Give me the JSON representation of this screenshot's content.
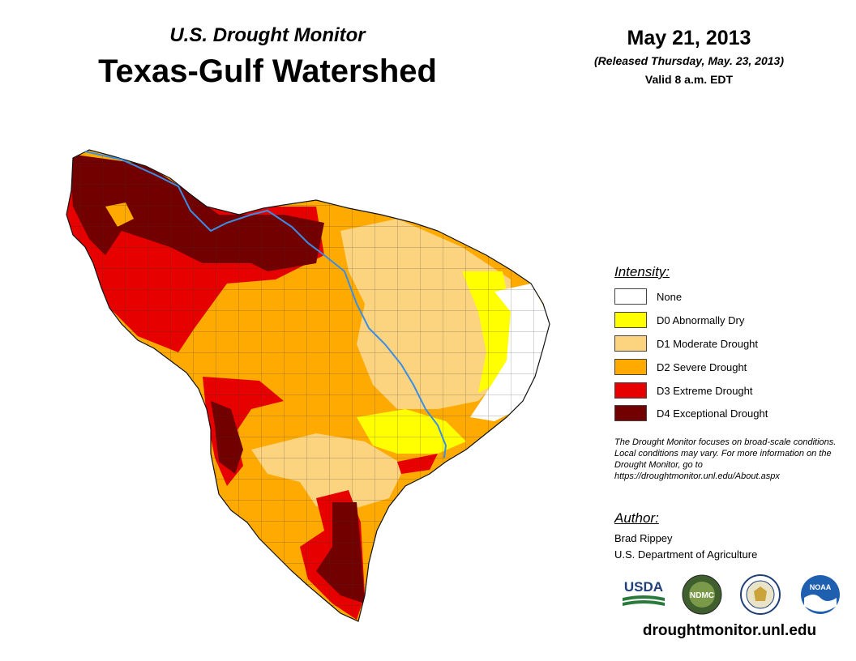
{
  "header": {
    "subtitle": "U.S. Drought Monitor",
    "title": "Texas-Gulf Watershed",
    "date": "May 21, 2013",
    "released": "(Released Thursday, May. 23, 2013)",
    "valid": "Valid 8 a.m. EDT"
  },
  "legend": {
    "title": "Intensity:",
    "items": [
      {
        "label": "None",
        "color": "#ffffff"
      },
      {
        "label": "D0 Abnormally Dry",
        "color": "#ffff00"
      },
      {
        "label": "D1 Moderate Drought",
        "color": "#fcd37f"
      },
      {
        "label": "D2 Severe Drought",
        "color": "#ffaa00"
      },
      {
        "label": "D3 Extreme Drought",
        "color": "#e60000"
      },
      {
        "label": "D4 Exceptional Drought",
        "color": "#730000"
      }
    ]
  },
  "note": "The Drought Monitor focuses on broad-scale conditions. Local conditions may vary. For more information on the Drought Monitor, go to https://droughtmonitor.unl.edu/About.aspx",
  "author": {
    "title": "Author:",
    "name": "Brad Rippey",
    "org": "U.S. Department of Agriculture"
  },
  "logos": {
    "usda": "USDA",
    "ndmc": "NDMC",
    "noaa": "NOAA"
  },
  "footer": {
    "site": "droughtmonitor.unl.edu"
  },
  "colors": {
    "river": "#3a8ee6",
    "county_line": "#333333"
  }
}
